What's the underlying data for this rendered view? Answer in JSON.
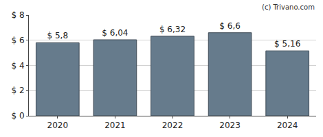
{
  "chart_data": {
    "type": "bar",
    "categories": [
      "2020",
      "2021",
      "2022",
      "2023",
      "2024"
    ],
    "values": [
      5.8,
      6.04,
      6.32,
      6.6,
      5.16
    ],
    "value_labels": [
      "$ 5,8",
      "$ 6,04",
      "$ 6,32",
      "$ 6,6",
      "$ 5,16"
    ],
    "data_labels": true,
    "color": "#667b8c",
    "ylim": [
      0,
      8
    ],
    "yticks": [
      {
        "value": 0,
        "label": "$ 0"
      },
      {
        "value": 2,
        "label": "$ 2"
      },
      {
        "value": 4,
        "label": "$ 4"
      },
      {
        "value": 6,
        "label": "$ 6"
      },
      {
        "value": 8,
        "label": "$ 8"
      }
    ],
    "grid": true,
    "annotations": [
      "(c) Trivano.com"
    ]
  }
}
